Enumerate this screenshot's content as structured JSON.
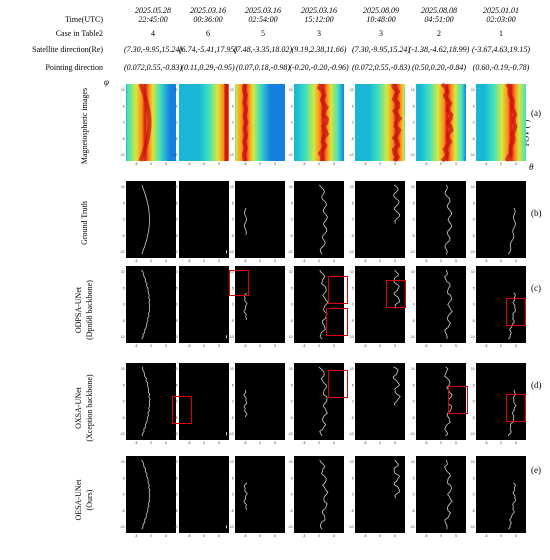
{
  "header": {
    "labels": {
      "time": "Time(UTC)",
      "case": "Case in Table2",
      "satellite": "Satellite direction(Re)",
      "pointing": "Pointing direction"
    },
    "columns": [
      {
        "date": "2025.05.28",
        "time": "22:45:00",
        "case": "4",
        "satellite": "(7.30,-9.95,15.24)",
        "pointing": "(0.072,0.55,-0.83)"
      },
      {
        "date": "2025.03.16",
        "time": "00:36:00",
        "case": "6",
        "satellite": "(6.74,-5.41,17.95)",
        "pointing": "(0.11,0.29,-0.95)"
      },
      {
        "date": "2025.03.16",
        "time": "02:54:00",
        "case": "5",
        "satellite": "(7.48,-3.35,18.02)",
        "pointing": "(0.07,0.18,-0.98)"
      },
      {
        "date": "2025.03.16",
        "time": "15:12:00",
        "case": "3",
        "satellite": "(9.19,2.38,11.66)",
        "pointing": "(-0.20,-0.20,-0.96)"
      },
      {
        "date": "2025.08.09",
        "time": "10:48:00",
        "case": "3",
        "satellite": "(7.30,-9.95,15.24)",
        "pointing": "(0.072,0.55,-0.83)"
      },
      {
        "date": "2025.08.08",
        "time": "04:51:00",
        "case": "2",
        "satellite": "(-1.38,-4.62,18.99)",
        "pointing": "(0.50,0.20,-0.84)"
      },
      {
        "date": "2025.01.01",
        "time": "02:03:00",
        "case": "1",
        "satellite": "(-3.67,4.63,19.15)",
        "pointing": "(0.60,-0.19,-0.78)"
      }
    ]
  },
  "rows": [
    {
      "label": "Magnetospheric images",
      "sublabel": "",
      "letter": "(a)",
      "kind": "heatmap"
    },
    {
      "label": "Ground Truth",
      "sublabel": "",
      "letter": "(b)",
      "kind": "line"
    },
    {
      "label": "ODPSA-UNet",
      "sublabel": "(Dpn68 backbone)",
      "letter": "(c)",
      "kind": "line"
    },
    {
      "label": "OXSA-UNet",
      "sublabel": "(Xception backbone)",
      "letter": "(d)",
      "kind": "line"
    },
    {
      "label": "OESA-UNet",
      "sublabel": "(Ours)",
      "letter": "(e)",
      "kind": "line"
    }
  ],
  "axes": {
    "phi_symbol": "φ",
    "theta_symbol": "θ",
    "fov_label": "FOV (°)",
    "yticks": [
      "10",
      "5",
      "0",
      "-5",
      "-10"
    ],
    "xticks": [
      "-5",
      "0",
      "5"
    ]
  },
  "colors": {
    "highlight_box": "#e00000",
    "panel_bg": "#000000",
    "boundary_line": "#cfcfcf"
  }
}
